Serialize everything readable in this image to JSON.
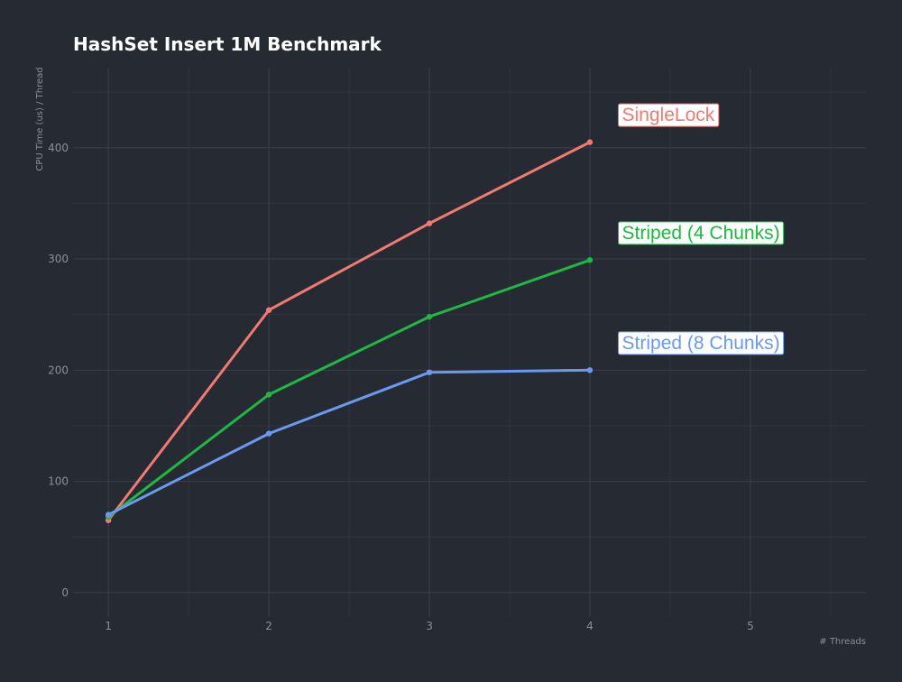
{
  "chart_data": {
    "type": "line",
    "title": "HashSet Insert 1M Benchmark",
    "xlabel": "# Threads",
    "ylabel": "CPU Time (us) / Thread",
    "xlim": [
      0.78,
      5.72
    ],
    "ylim": [
      -22,
      472
    ],
    "x_ticks": [
      1,
      2,
      3,
      4,
      5
    ],
    "y_ticks": [
      0,
      100,
      200,
      300,
      400
    ],
    "grid": true,
    "series": [
      {
        "name": "SingleLock",
        "color": "#f07a72",
        "x": [
          1,
          2,
          3,
          4
        ],
        "values": [
          65,
          254,
          332,
          405
        ]
      },
      {
        "name": "Striped (4 Chunks)",
        "color": "#1fb843",
        "x": [
          1,
          2,
          3,
          4
        ],
        "values": [
          68,
          178,
          248,
          299
        ]
      },
      {
        "name": "Striped (8 Chunks)",
        "color": "#6a9af0",
        "x": [
          1,
          2,
          3,
          4
        ],
        "values": [
          70,
          143,
          198,
          200
        ]
      }
    ],
    "labels": [
      {
        "text": "SingleLock",
        "series": "SingleLock",
        "x": 4.2,
        "y": 424
      },
      {
        "text": "Striped (4 Chunks)",
        "series": "Striped (4 Chunks)",
        "x": 4.2,
        "y": 318
      },
      {
        "text": "Striped (8 Chunks)",
        "series": "Striped (8 Chunks)",
        "x": 4.2,
        "y": 219
      }
    ]
  }
}
